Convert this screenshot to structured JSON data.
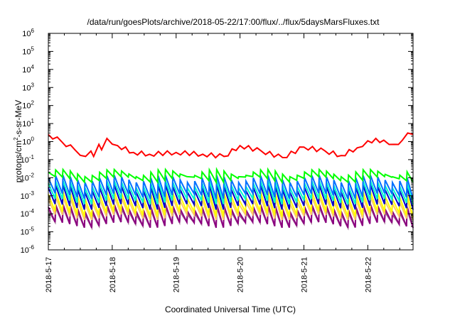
{
  "chart_data": {
    "type": "line",
    "title": "/data/run/goesPlots/archive/2018-05-22/17:00/flux/../flux/5daysMarsFluxes.txt",
    "xlabel": "Coordinated Universal Time (UTC)",
    "ylabel": {
      "prefix": "protons/cm",
      "sup": "2",
      "suffix": "-s-sr-MeV"
    },
    "yscale": "log",
    "ylim": [
      1e-06,
      1000000.0
    ],
    "y_ticks": [
      {
        "value": 1e-06,
        "exp": "-6"
      },
      {
        "value": 1e-05,
        "exp": "-5"
      },
      {
        "value": 0.0001,
        "exp": "-4"
      },
      {
        "value": 0.001,
        "exp": "-3"
      },
      {
        "value": 0.01,
        "exp": "-2"
      },
      {
        "value": 0.1,
        "exp": "-1"
      },
      {
        "value": 1,
        "exp": "0"
      },
      {
        "value": 10.0,
        "exp": "1"
      },
      {
        "value": 100.0,
        "exp": "2"
      },
      {
        "value": 1000.0,
        "exp": "3"
      },
      {
        "value": 10000.0,
        "exp": "4"
      },
      {
        "value": 100000.0,
        "exp": "5"
      },
      {
        "value": 1000000.0,
        "exp": "6"
      }
    ],
    "y_tick_base": "10",
    "x_range_days": [
      "2018-05-17T00:00",
      "2018-05-22T17:00"
    ],
    "x_ticks": [
      "2018-5-17",
      "2018-5-18",
      "2018-5-19",
      "2018-5-20",
      "2018-5-21",
      "2018-5-22"
    ],
    "grid": false,
    "legend": "none",
    "series_colors": [
      "#ff0000",
      "#00ff00",
      "#0070ff",
      "#00ffcc",
      "#0000cc",
      "#ffff00",
      "#ffcc66",
      "#8b0080",
      "#9a5a8a"
    ],
    "series_sawtooth": {
      "period_hours": 2.75,
      "bands": [
        {
          "color": "#00ff00",
          "high": 0.025,
          "low": 0.01
        },
        {
          "color": "#0070ff",
          "high": 0.012,
          "low": 0.0012
        },
        {
          "color": "#00ffcc",
          "high": 0.006,
          "low": 0.0006
        },
        {
          "color": "#0000cc",
          "high": 0.0035,
          "low": 0.0003
        },
        {
          "color": "#ffff00",
          "high": 0.0015,
          "low": 0.00012
        },
        {
          "color": "#ffcc66",
          "high": 0.0008,
          "low": 8e-05
        },
        {
          "color": "#8b0080",
          "high": 0.0003,
          "low": 3e-05
        },
        {
          "color": "#9a5a8a",
          "high": 0.0002,
          "low": 3e-05
        }
      ]
    },
    "series_red": {
      "color": "#ff0000",
      "points": [
        [
          "2018-05-17T00:00",
          2.5
        ],
        [
          "2018-05-17T05:00",
          1.0
        ],
        [
          "2018-05-17T10:00",
          0.35
        ],
        [
          "2018-05-17T14:00",
          0.15
        ],
        [
          "2018-05-17T16:00",
          0.3
        ],
        [
          "2018-05-17T17:00",
          0.15
        ],
        [
          "2018-05-17T19:00",
          0.7
        ],
        [
          "2018-05-17T20:00",
          0.35
        ],
        [
          "2018-05-17T22:00",
          1.5
        ],
        [
          "2018-05-18T02:00",
          0.6
        ],
        [
          "2018-05-18T08:00",
          0.25
        ],
        [
          "2018-05-18T14:00",
          0.2
        ],
        [
          "2018-05-19T00:00",
          0.25
        ],
        [
          "2018-05-19T10:00",
          0.2
        ],
        [
          "2018-05-19T18:00",
          0.15
        ],
        [
          "2018-05-20T00:00",
          0.6
        ],
        [
          "2018-05-20T08:00",
          0.3
        ],
        [
          "2018-05-20T16:00",
          0.13
        ],
        [
          "2018-05-21T00:00",
          0.5
        ],
        [
          "2018-05-21T08:00",
          0.3
        ],
        [
          "2018-05-21T14:00",
          0.17
        ],
        [
          "2018-05-21T20:00",
          0.45
        ],
        [
          "2018-05-22T00:00",
          1.1
        ],
        [
          "2018-05-22T06:00",
          1.2
        ],
        [
          "2018-05-22T10:00",
          0.7
        ],
        [
          "2018-05-22T13:00",
          1.2
        ],
        [
          "2018-05-22T15:00",
          3.0
        ],
        [
          "2018-05-22T17:00",
          2.5
        ]
      ]
    }
  }
}
